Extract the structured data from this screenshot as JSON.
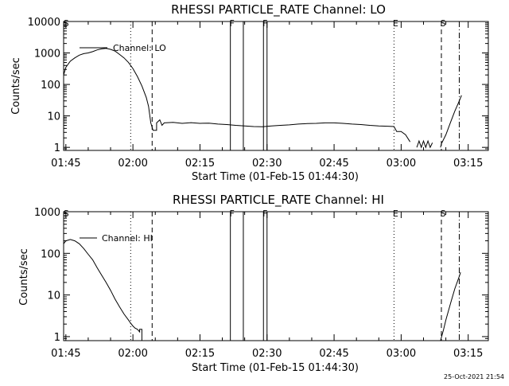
{
  "colors": {
    "background": "#ffffff",
    "ink": "#000000"
  },
  "footer": {
    "timestamp": "25-Oct-2021 21:54"
  },
  "chart_data": [
    {
      "type": "line",
      "title": "RHESSI PARTICLE_RATE Channel: LO",
      "xlabel": "Start Time (01-Feb-15 01:44:30)",
      "ylabel": "Counts/sec",
      "yscale": "log",
      "xlim": [
        -0.5,
        94.5
      ],
      "ylim": [
        0.8,
        10000
      ],
      "x_unit": "minutes after 01:45",
      "x_ticks": [
        {
          "x": 0,
          "label": "01:45"
        },
        {
          "x": 15,
          "label": "02:00"
        },
        {
          "x": 30,
          "label": "02:15"
        },
        {
          "x": 45,
          "label": "02:30"
        },
        {
          "x": 60,
          "label": "02:45"
        },
        {
          "x": 75,
          "label": "03:00"
        },
        {
          "x": 90,
          "label": "03:15"
        }
      ],
      "y_ticks": [
        {
          "y": 1,
          "label": "1"
        },
        {
          "y": 10,
          "label": "10"
        },
        {
          "y": 100,
          "label": "100"
        },
        {
          "y": 1000,
          "label": "1000"
        },
        {
          "y": 10000,
          "label": "10000"
        }
      ],
      "legend": {
        "label": "Channel: LO",
        "position": "top-left"
      },
      "grid": false,
      "markers": [
        {
          "x": -0.3,
          "label": "S",
          "style": "none"
        },
        {
          "x": 14.5,
          "label": "",
          "style": "dotted"
        },
        {
          "x": 19.3,
          "label": "",
          "style": "dashed"
        },
        {
          "x": 36.8,
          "label": "F",
          "style": "solid"
        },
        {
          "x": 39.7,
          "label": "",
          "style": "solid"
        },
        {
          "x": 44.2,
          "label": "F",
          "style": "solid"
        },
        {
          "x": 45.0,
          "label": "",
          "style": "solid"
        },
        {
          "x": 73.4,
          "label": "E",
          "style": "dotted"
        },
        {
          "x": 84.0,
          "label": "S",
          "style": "dashed"
        },
        {
          "x": 88.0,
          "label": "",
          "style": "dashdot"
        }
      ],
      "series": [
        {
          "name": "Channel: LO",
          "segments": [
            [
              [
                -0.5,
                200
              ],
              [
                0,
                350
              ],
              [
                1,
                550
              ],
              [
                2,
                700
              ],
              [
                3,
                850
              ],
              [
                4,
                950
              ],
              [
                5,
                1000
              ],
              [
                6,
                1100
              ],
              [
                7,
                1250
              ],
              [
                8,
                1350
              ],
              [
                9,
                1400
              ],
              [
                10,
                1300
              ],
              [
                11,
                1150
              ],
              [
                12,
                900
              ],
              [
                13,
                700
              ],
              [
                14,
                500
              ],
              [
                15,
                320
              ],
              [
                16,
                180
              ],
              [
                17,
                90
              ],
              [
                18,
                38
              ],
              [
                18.5,
                20
              ],
              [
                19,
                6
              ],
              [
                19.5,
                3.5
              ],
              [
                20,
                3.5
              ],
              [
                20.3,
                3.5
              ],
              [
                20.3,
                6
              ],
              [
                21,
                7.5
              ],
              [
                21.5,
                5
              ],
              [
                22,
                6
              ],
              [
                24,
                6.2
              ],
              [
                26,
                5.8
              ],
              [
                28,
                6.1
              ],
              [
                30,
                5.8
              ],
              [
                32,
                5.9
              ],
              [
                34,
                5.5
              ],
              [
                36,
                5.3
              ],
              [
                38,
                5.0
              ],
              [
                40,
                4.8
              ],
              [
                42,
                4.6
              ],
              [
                44,
                4.5
              ],
              [
                46,
                4.8
              ],
              [
                48,
                5.0
              ],
              [
                50,
                5.2
              ],
              [
                52,
                5.5
              ],
              [
                54,
                5.7
              ],
              [
                56,
                5.8
              ],
              [
                58,
                6.0
              ],
              [
                60,
                6.0
              ],
              [
                62,
                5.8
              ],
              [
                64,
                5.5
              ],
              [
                66,
                5.3
              ],
              [
                68,
                5.0
              ],
              [
                70,
                4.8
              ],
              [
                72,
                4.7
              ],
              [
                73.4,
                4.6
              ],
              [
                74,
                3.2
              ],
              [
                75,
                3.2
              ],
              [
                76,
                2.5
              ],
              [
                77,
                1.5
              ]
            ],
            [
              [
                78.5,
                1
              ],
              [
                79,
                1.6
              ],
              [
                79.5,
                1
              ],
              [
                80,
                1.6
              ],
              [
                80.5,
                1
              ],
              [
                81,
                1.6
              ],
              [
                81.5,
                1
              ],
              [
                82,
                1.4
              ]
            ],
            [
              [
                83.8,
                1
              ],
              [
                84,
                1.3
              ],
              [
                85,
                2.5
              ],
              [
                86,
                6
              ],
              [
                87,
                14
              ],
              [
                88,
                30
              ],
              [
                88.5,
                45
              ]
            ]
          ]
        }
      ]
    },
    {
      "type": "line",
      "title": "RHESSI PARTICLE_RATE Channel: HI",
      "xlabel": "Start Time (01-Feb-15 01:44:30)",
      "ylabel": "Counts/sec",
      "yscale": "log",
      "xlim": [
        -0.5,
        94.5
      ],
      "ylim": [
        0.8,
        1000
      ],
      "x_unit": "minutes after 01:45",
      "x_ticks": [
        {
          "x": 0,
          "label": "01:45"
        },
        {
          "x": 15,
          "label": "02:00"
        },
        {
          "x": 30,
          "label": "02:15"
        },
        {
          "x": 45,
          "label": "02:30"
        },
        {
          "x": 60,
          "label": "02:45"
        },
        {
          "x": 75,
          "label": "03:00"
        },
        {
          "x": 90,
          "label": "03:15"
        }
      ],
      "y_ticks": [
        {
          "y": 1,
          "label": "1"
        },
        {
          "y": 10,
          "label": "10"
        },
        {
          "y": 100,
          "label": "100"
        },
        {
          "y": 1000,
          "label": "1000"
        }
      ],
      "legend": {
        "label": "Channel: HI",
        "position": "top-left"
      },
      "grid": false,
      "markers": [
        {
          "x": -0.3,
          "label": "S",
          "style": "none"
        },
        {
          "x": 14.5,
          "label": "",
          "style": "dotted"
        },
        {
          "x": 19.3,
          "label": "",
          "style": "dashed"
        },
        {
          "x": 36.8,
          "label": "F",
          "style": "solid"
        },
        {
          "x": 39.7,
          "label": "",
          "style": "solid"
        },
        {
          "x": 44.2,
          "label": "F",
          "style": "solid"
        },
        {
          "x": 45.0,
          "label": "",
          "style": "solid"
        },
        {
          "x": 73.4,
          "label": "E",
          "style": "dotted"
        },
        {
          "x": 84.0,
          "label": "S",
          "style": "dashed"
        },
        {
          "x": 88.0,
          "label": "",
          "style": "dashdot"
        }
      ],
      "series": [
        {
          "name": "Channel: HI",
          "segments": [
            [
              [
                -0.5,
                170
              ],
              [
                0,
                200
              ],
              [
                1,
                215
              ],
              [
                2,
                200
              ],
              [
                3,
                170
              ],
              [
                4,
                130
              ],
              [
                5,
                95
              ],
              [
                6,
                70
              ],
              [
                7,
                45
              ],
              [
                8,
                30
              ],
              [
                9,
                20
              ],
              [
                10,
                13
              ],
              [
                11,
                8
              ],
              [
                12,
                5.2
              ],
              [
                13,
                3.5
              ],
              [
                14,
                2.5
              ],
              [
                14.5,
                2.1
              ],
              [
                15,
                1.8
              ],
              [
                15.5,
                1.6
              ],
              [
                16,
                1.5
              ],
              [
                16.5,
                1.3
              ],
              [
                16.5,
                1.5
              ],
              [
                17,
                1.5
              ],
              [
                17,
                0.8
              ]
            ],
            [
              [
                83.8,
                0.8
              ],
              [
                84.5,
                1.5
              ],
              [
                85,
                2.5
              ],
              [
                86,
                6
              ],
              [
                87,
                14
              ],
              [
                88,
                28
              ],
              [
                88.3,
                35
              ]
            ]
          ]
        }
      ]
    }
  ]
}
